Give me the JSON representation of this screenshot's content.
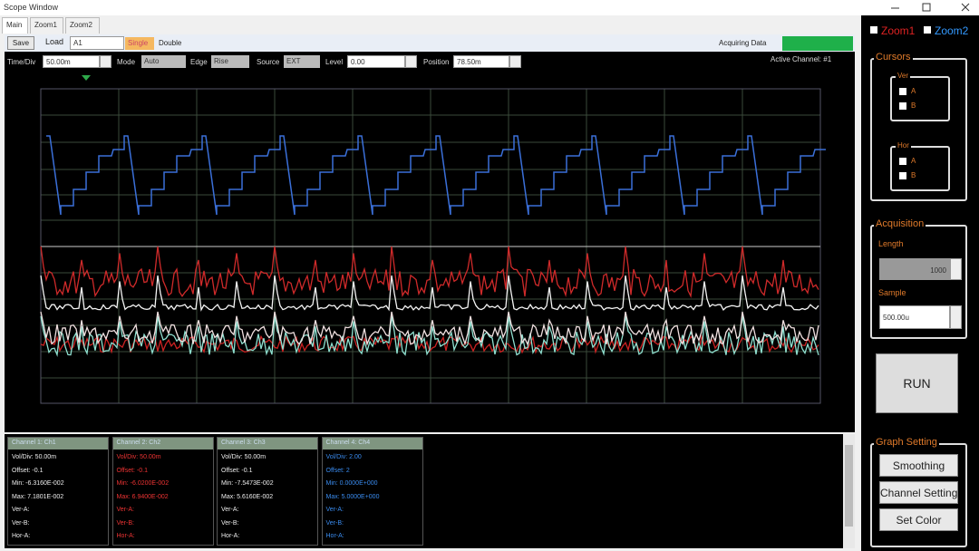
{
  "window": {
    "title": "Scope Window"
  },
  "tabs": [
    "Main",
    "Zoom1",
    "Zoom2"
  ],
  "toolbar": {
    "save": "Save",
    "load": "Load",
    "channel": "A1",
    "single": "Single",
    "double": "Double",
    "status": "Acquiring Data"
  },
  "controls": [
    {
      "label": "Time/Div",
      "value": "50.00m"
    },
    {
      "label": "Mode",
      "value": "Auto"
    },
    {
      "label": "Edge",
      "value": "Rise"
    },
    {
      "label": "Source",
      "value": "EXT"
    },
    {
      "label": "Level",
      "value": "0.00"
    },
    {
      "label": "Position",
      "value": "78.50m"
    }
  ],
  "active_channel": "Active Channel: #1",
  "side": {
    "zoom1": "Zoom1",
    "zoom2": "Zoom2",
    "cursors": "Cursors",
    "ver": "Ver",
    "ver_options": [
      "A",
      "B"
    ],
    "hor": "Hor",
    "hor_options": [
      "A",
      "B"
    ],
    "acquisition": "Acquisition",
    "length_label": "Length",
    "length_value": "1000",
    "sample_label": "Sample",
    "sample_value": "500.00u",
    "run": "RUN",
    "graph_setting": "Graph Setting",
    "buttons": [
      "Smoothing",
      "Channel Setting",
      "Set Color"
    ]
  },
  "channels": [
    {
      "header": "Channel 1: Ch1",
      "lines": [
        "Vol/Div: 50.00m",
        "Offset: -0.1",
        "Min: -6.3160E-002",
        "Max: 7.1801E-002",
        "Ver-A:",
        "Ver-B:",
        "Hor-A:"
      ]
    },
    {
      "header": "Channel 2: Ch2",
      "lines": [
        "Vol/Div: 50.00m",
        "Offset: -0.1",
        "Min: -6.0200E-002",
        "Max: 6.9400E-002",
        "Ver-A:",
        "Ver-B:",
        "Hor-A:"
      ]
    },
    {
      "header": "Channel 3: Ch3",
      "lines": [
        "Vol/Div: 50.00m",
        "Offset: -0.1",
        "Min: -7.5473E-002",
        "Max: 5.6160E-002",
        "Ver-A:",
        "Ver-B:",
        "Hor-A:"
      ]
    },
    {
      "header": "Channel 4: Ch4",
      "lines": [
        "Vol/Div: 2.00",
        "Offset: 2",
        "Min: 0.0000E+000",
        "Max: 5.0000E+000",
        "Ver-A:",
        "Ver-B:",
        "Hor-A:"
      ]
    }
  ]
}
